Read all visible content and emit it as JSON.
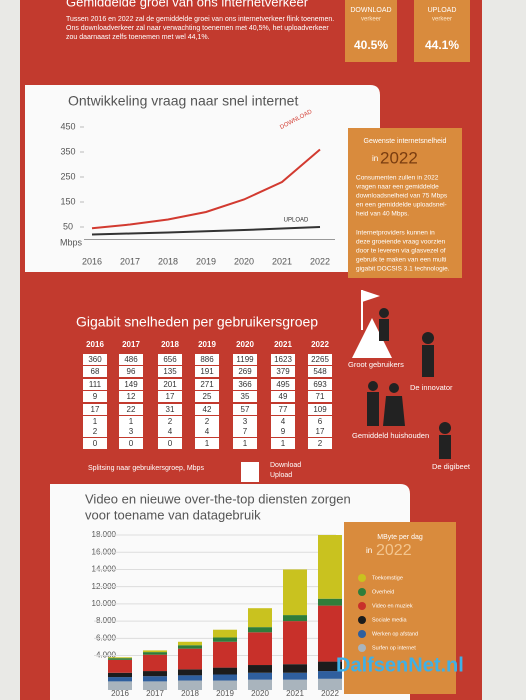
{
  "intro": {
    "title": "Gemiddelde groei van ons internetverkeer",
    "text": [
      "Tussen 2016 en 2022 zal de gemiddelde groei van ons internetverkeer flink toenemen.",
      "Ons downloadverkeer zal naar verwachting toenemen met 40,5%, het uploadverkeer",
      "zou daarnaast zelfs toenemen met wel 44,1%."
    ],
    "boxes": [
      {
        "label": "DOWNLOAD",
        "sub": "verkeer",
        "value": "40.5%"
      },
      {
        "label": "UPLOAD",
        "sub": "verkeer",
        "value": "44.1%"
      }
    ]
  },
  "speed_box": {
    "title": "Gewenste internetsnelheid",
    "in": "in",
    "year": "2022",
    "text": [
      "Consumenten zullen in 2022",
      "vragen naar een gemiddelde",
      "downloadsnelheid van 75 Mbps",
      "en een gemiddelde uploadsnel-",
      "heid van 40 Mbps.",
      "Internetproviders kunnen in",
      "deze groeiende vraag voorzien",
      "door te leveren via glasvezel of",
      "gebruik te maken van een multi",
      "gigabit DOCSIS 3.1 technologie."
    ]
  },
  "gigabit": {
    "title": "Gigabit snelheden per gebruikersgroep",
    "years": [
      "2016",
      "2017",
      "2018",
      "2019",
      "2020",
      "2021",
      "2022"
    ],
    "groups": [
      {
        "name": "Groot gebruikers",
        "rows": [
          [
            "360",
            "68"
          ],
          [
            "486",
            "96"
          ],
          [
            "656",
            "135"
          ],
          [
            "886",
            "191"
          ],
          [
            "1199",
            "269"
          ],
          [
            "1623",
            "379"
          ],
          [
            "2265",
            "548"
          ]
        ]
      },
      {
        "name": "De innovator",
        "rows": [
          [
            "111",
            "9"
          ],
          [
            "149",
            "12"
          ],
          [
            "201",
            "17"
          ],
          [
            "271",
            "25"
          ],
          [
            "366",
            "35"
          ],
          [
            "495",
            "49"
          ],
          [
            "693",
            "71"
          ]
        ]
      },
      {
        "name": "Gemiddeld huishouden",
        "rows": [
          [
            "17",
            "1"
          ],
          [
            "22",
            "1"
          ],
          [
            "31",
            "2"
          ],
          [
            "42",
            "2"
          ],
          [
            "57",
            "3"
          ],
          [
            "77",
            "4"
          ],
          [
            "109",
            "6"
          ]
        ]
      },
      {
        "name": "De digibeet",
        "rows": [
          [
            "2",
            "0"
          ],
          [
            "3",
            "0"
          ],
          [
            "4",
            "0"
          ],
          [
            "4",
            "1"
          ],
          [
            "7",
            "1"
          ],
          [
            "9",
            "1"
          ],
          [
            "17",
            "2"
          ]
        ]
      }
    ],
    "note": "Splitsing naar gebruikersgroep, Mbps",
    "download": "Download",
    "upload": "Upload"
  },
  "legend_box": {
    "title": "MByte per dag",
    "in": "in",
    "year": "2022"
  },
  "watermark": "DalfsenNet.nl",
  "chart_data": [
    {
      "type": "line",
      "title": "Ontwikkeling vraag naar snel internet",
      "y_label": "Mbps",
      "categories": [
        "2016",
        "2017",
        "2018",
        "2019",
        "2020",
        "2021",
        "2022"
      ],
      "series": [
        {
          "name": "DOWNLOAD",
          "color": "#d23a30",
          "values": [
            45,
            60,
            80,
            110,
            160,
            230,
            360
          ]
        },
        {
          "name": "UPLOAD",
          "color": "#333333",
          "values": [
            20,
            24,
            28,
            33,
            38,
            44,
            50
          ]
        }
      ],
      "ylim": [
        0,
        450
      ],
      "yticks": [
        50,
        150,
        250,
        350,
        450
      ]
    },
    {
      "type": "bar",
      "stacked": true,
      "title": "Video en nieuwe over-the-top diensten zorgen",
      "title2": "voor toename van datagebruik",
      "categories": [
        "2016",
        "2017",
        "2018",
        "2019",
        "2020",
        "2021",
        "2022"
      ],
      "series": [
        {
          "name": "Toekomstige",
          "color": "#c9c21f",
          "values": [
            100,
            200,
            400,
            900,
            2200,
            5300,
            7400
          ]
        },
        {
          "name": "Overheid",
          "color": "#2f7d3a",
          "values": [
            200,
            300,
            400,
            500,
            600,
            700,
            800
          ]
        },
        {
          "name": "Video en muziek",
          "color": "#c8302a",
          "values": [
            1500,
            1900,
            2400,
            3000,
            3800,
            5000,
            6500
          ]
        },
        {
          "name": "Sociale media",
          "color": "#1c1c1c",
          "values": [
            500,
            600,
            700,
            800,
            900,
            1000,
            1100
          ]
        },
        {
          "name": "Werken op afstand",
          "color": "#2f5f9e",
          "values": [
            500,
            600,
            600,
            700,
            800,
            800,
            900
          ]
        },
        {
          "name": "Surfen op internet",
          "color": "#a9b4bd",
          "values": [
            1000,
            1000,
            1100,
            1100,
            1200,
            1200,
            1300
          ]
        }
      ],
      "ylim": [
        0,
        18000
      ],
      "yticks": [
        {
          "value": 4000,
          "label": "4.000"
        },
        {
          "value": 6000,
          "label": "6.000"
        },
        {
          "value": 8000,
          "label": "8.000"
        },
        {
          "value": 10000,
          "label": "10.000"
        },
        {
          "value": 12000,
          "label": "12.000"
        },
        {
          "value": 14000,
          "label": "14.000"
        },
        {
          "value": 16000,
          "label": "16.000"
        },
        {
          "value": 18000,
          "label": "18.000"
        }
      ]
    }
  ]
}
